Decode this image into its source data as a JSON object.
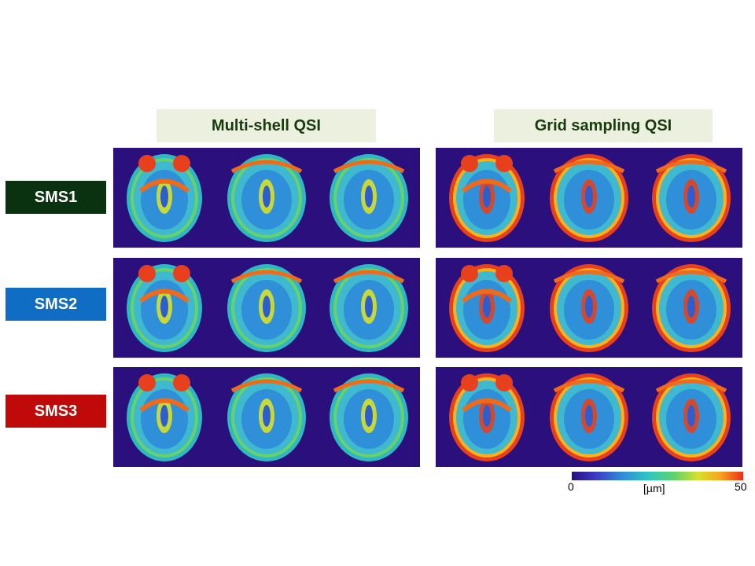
{
  "headers": {
    "left": "Multi-shell QSI",
    "right": "Grid sampling QSI"
  },
  "rows": [
    {
      "label": "SMS1",
      "color": "#0a3210"
    },
    {
      "label": "SMS2",
      "color": "#0f6ec3"
    },
    {
      "label": "SMS3",
      "color": "#c00a0a"
    }
  ],
  "colorbar": {
    "min": "0",
    "max": "50",
    "unit": "[µm]"
  },
  "colors": {
    "background": "#2b0f7d",
    "header_bg": "#ebf1de"
  }
}
